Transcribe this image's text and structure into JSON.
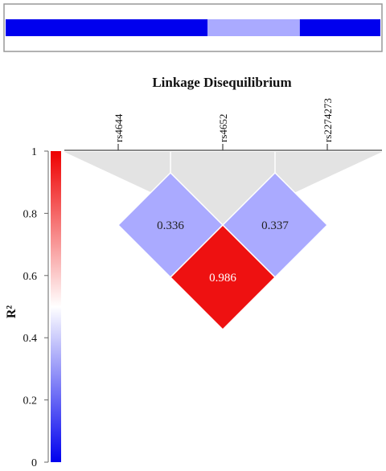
{
  "title": "Linkage Disequilibrium",
  "haplotype_bar": {
    "segments": [
      {
        "from": 0.0,
        "to": 0.539,
        "color": "#0000ee"
      },
      {
        "from": 0.539,
        "to": 0.785,
        "color": "#aaaaff"
      },
      {
        "from": 0.785,
        "to": 1.0,
        "color": "#0000ee"
      }
    ]
  },
  "snps": [
    "rs4644",
    "rs4652",
    "rs2274273"
  ],
  "colorbar": {
    "label": "R²",
    "ticks": [
      "1",
      "0.8",
      "0.6",
      "0.4",
      "0.2",
      "0"
    ],
    "colors": {
      "high": "#ee0000",
      "mid": "#ffffff",
      "low": "#0000ee"
    }
  },
  "ld_cells": [
    {
      "i": 0,
      "j": 1,
      "value": "0.336",
      "color": "#aaaaff",
      "text_color": "#222222"
    },
    {
      "i": 1,
      "j": 2,
      "value": "0.337",
      "color": "#aaaaff",
      "text_color": "#222222"
    },
    {
      "i": 0,
      "j": 2,
      "value": "0.986",
      "color": "#ee1111",
      "text_color": "#ffffff"
    }
  ],
  "colors": {
    "background_triangle": "#e3e3e3"
  }
}
